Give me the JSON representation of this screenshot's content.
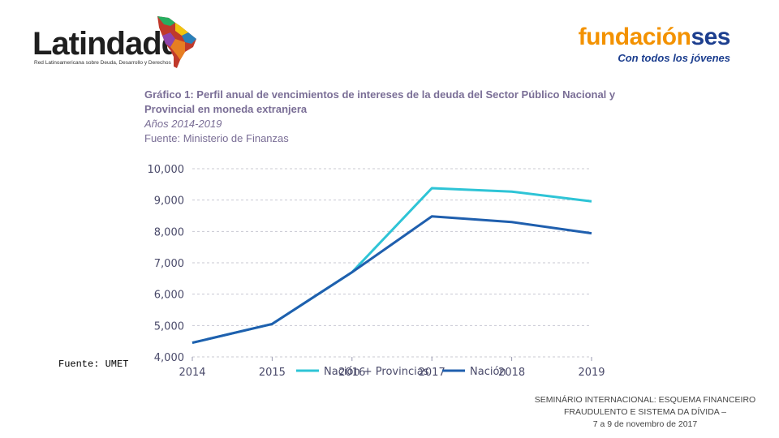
{
  "logos": {
    "left_name": "Latindadd",
    "left_subtitle": "Red Latinoamericana sobre Deuda, Desarrollo y Derechos",
    "right_name_part1": "fundación",
    "right_name_part2": "ses",
    "right_tagline": "Con todos los jóvenes",
    "colors": {
      "orange": "#f39200",
      "navy": "#1d3f8f"
    }
  },
  "chart_header": {
    "title_line1": "Gráfico 1: Perfil anual de vencimientos de intereses de la deuda del Sector Público Nacional y",
    "title_line2": "Provincial en moneda extranjera",
    "years": "Años 2014-2019",
    "source": "Fuente: Ministerio de Finanzas"
  },
  "side_source": "Fuente: UMET",
  "footer": {
    "line1": "SEMINÁRIO INTERNACIONAL: ESQUEMA FINANCEIRO",
    "line2": "FRAUDULENTO E SISTEMA DA DÍVIDA –",
    "line3": "7 a 9 de novembro de 2017"
  },
  "chart_data": {
    "type": "line",
    "title": "Gráfico 1: Perfil anual de vencimientos de intereses de la deuda del Sector Público Nacional y Provincial en moneda extranjera",
    "x": [
      "2014",
      "2015",
      "2016",
      "2017",
      "2018",
      "2019"
    ],
    "ylim": [
      4000,
      10000
    ],
    "yticks": [
      "4,000",
      "5,000",
      "6,000",
      "7,000",
      "8,000",
      "9,000",
      "10,000"
    ],
    "ytick_values": [
      4000,
      5000,
      6000,
      7000,
      8000,
      9000,
      10000
    ],
    "grid": true,
    "legend_position": "bottom",
    "series": [
      {
        "name": "Nación + Provincias",
        "color": "#2ec4d6",
        "values": [
          4450,
          5050,
          6700,
          9380,
          9270,
          8960
        ]
      },
      {
        "name": "Nación",
        "color": "#1f5fae",
        "values": [
          4450,
          5050,
          6700,
          8480,
          8300,
          7940
        ]
      }
    ]
  }
}
